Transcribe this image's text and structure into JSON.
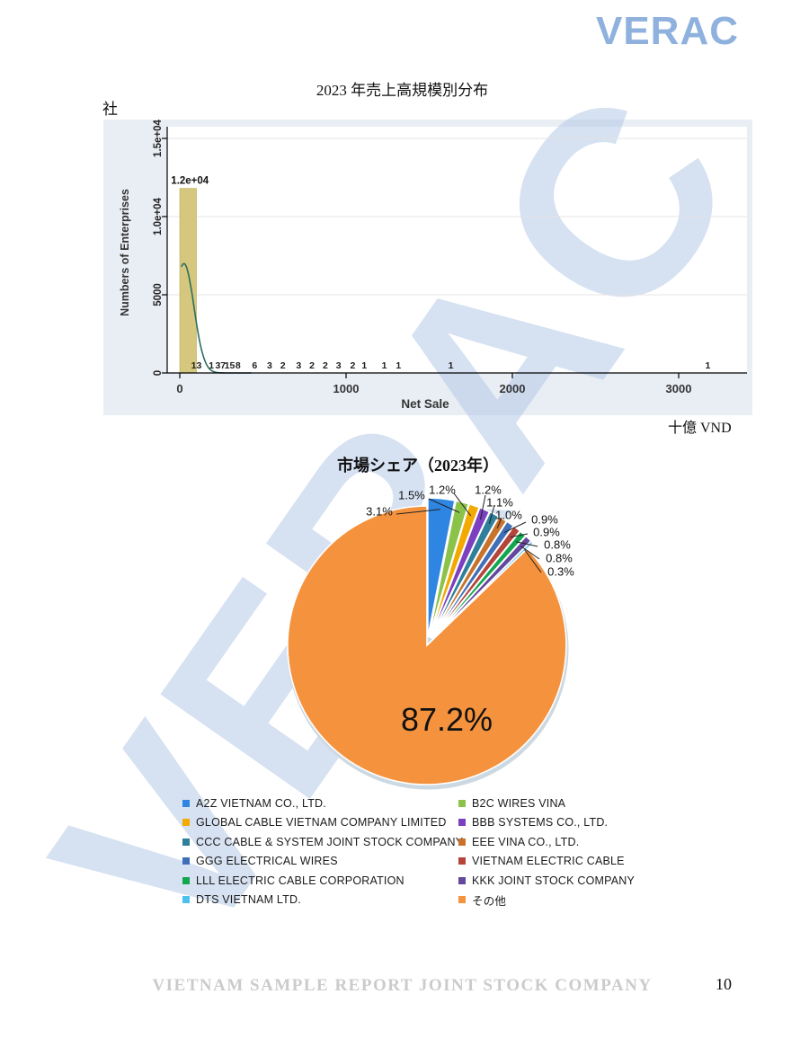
{
  "logo": {
    "text": "VERAC",
    "color": "#8fb1de"
  },
  "watermark": {
    "text": "VERAC",
    "color": "#b6c9e8"
  },
  "histogram_section": {
    "title": "2023 年売上高規模別分布",
    "unit_left": "社",
    "unit_right": "十億 VND"
  },
  "pie_section": {
    "title": "市場シェア（2023年）"
  },
  "footer": {
    "company": "VIETNAM SAMPLE REPORT JOINT STOCK COMPANY",
    "page_number": "10"
  },
  "chart_data": [
    {
      "type": "bar",
      "subtype": "histogram-with-density",
      "title": "2023 年売上高規模別分布",
      "xlabel": "Net Sale",
      "ylabel": "Numbers of Enterprises",
      "x_unit": "十億 VND",
      "y_unit": "社",
      "xlim": [
        -76,
        3410
      ],
      "ylim": [
        0,
        15600
      ],
      "grid": true,
      "xticks": [
        0,
        1000,
        2000,
        3000
      ],
      "yticks": [
        {
          "value": 0,
          "label": "0"
        },
        {
          "value": 5000,
          "label": "5000"
        },
        {
          "value": 10000,
          "label": "1.0e+04"
        },
        {
          "value": 15000,
          "label": "1.5e+04"
        }
      ],
      "bar": {
        "x_start": 0,
        "x_end": 100,
        "value": 11800,
        "label": "1.2e+04",
        "color": "#d5c77d",
        "edge_color": "#b9aa55"
      },
      "small_value_labels": [
        {
          "x": 100,
          "label": "13"
        },
        {
          "x": 190,
          "label": "1"
        },
        {
          "x": 245,
          "label": "37"
        },
        {
          "x": 300,
          "label": "15"
        },
        {
          "x": 350,
          "label": "8"
        },
        {
          "x": 450,
          "label": "6"
        },
        {
          "x": 540,
          "label": "3"
        },
        {
          "x": 620,
          "label": "2"
        },
        {
          "x": 715,
          "label": "3"
        },
        {
          "x": 795,
          "label": "2"
        },
        {
          "x": 875,
          "label": "2"
        },
        {
          "x": 955,
          "label": "3"
        },
        {
          "x": 1040,
          "label": "2"
        },
        {
          "x": 1110,
          "label": "1"
        },
        {
          "x": 1230,
          "label": "1"
        },
        {
          "x": 1315,
          "label": "1"
        },
        {
          "x": 1630,
          "label": "1"
        },
        {
          "x": 3175,
          "label": "1"
        }
      ],
      "density_curve": {
        "color": "#2e6e60",
        "peak": 7000,
        "center": 25,
        "sigma": 85
      },
      "frame_bg": "#e9eef4",
      "plot_bg": "#ffffff"
    },
    {
      "type": "pie",
      "title": "市場シェア（2023年）",
      "big_slice_label": "87.2%",
      "legend_position": "bottom",
      "slices": [
        {
          "label": "A2Z VIETNAM CO., LTD.",
          "value": 3.1,
          "color": "#2e86e2"
        },
        {
          "label": "B2C WIRES VINA",
          "value": 1.5,
          "color": "#8bc34a"
        },
        {
          "label": "GLOBAL CABLE VIETNAM  COMPANY LIMITED",
          "value": 1.2,
          "color": "#f2a900"
        },
        {
          "label": "BBB SYSTEMS CO., LTD.",
          "value": 1.2,
          "color": "#7b3fc0"
        },
        {
          "label": "CCC CABLE & SYSTEM JOINT STOCK COMPANY",
          "value": 1.1,
          "color": "#2e7f9a"
        },
        {
          "label": "EEE VINA CO., LTD.",
          "value": 1.0,
          "color": "#c8732c"
        },
        {
          "label": "GGG ELECTRICAL WIRES",
          "value": 0.9,
          "color": "#3f6fb8"
        },
        {
          "label": "VIETNAM ELECTRIC CABLE",
          "value": 0.9,
          "color": "#b5443a"
        },
        {
          "label": "LLL ELECTRIC CABLE CORPORATION",
          "value": 0.8,
          "color": "#12a64e"
        },
        {
          "label": "KKK JOINT STOCK COMPANY",
          "value": 0.8,
          "color": "#65479e"
        },
        {
          "label": "DTS VIETNAM LTD.",
          "value": 0.3,
          "color": "#4cc0ee"
        },
        {
          "label": "その他",
          "value": 87.2,
          "color": "#f4923e"
        }
      ]
    }
  ]
}
